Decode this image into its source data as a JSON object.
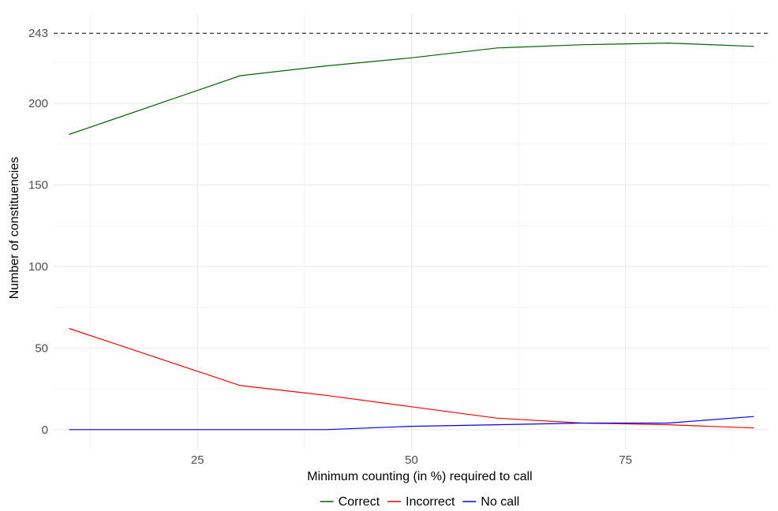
{
  "chart_data": {
    "type": "line",
    "xlabel": "Minimum counting (in %) required to call",
    "ylabel": "Number of constituencies",
    "x": [
      10,
      30,
      40,
      50,
      60,
      70,
      80,
      90
    ],
    "xlim": [
      8.2,
      91.8
    ],
    "ylim": [
      -12.2,
      255.2
    ],
    "x_ticks": [
      25,
      50,
      75
    ],
    "x_minor_ticks": [
      12.5,
      37.5,
      62.5,
      87.5
    ],
    "y_ticks": [
      0,
      50,
      100,
      150,
      200,
      243
    ],
    "y_minor_ticks": [
      25,
      75,
      125,
      175,
      225
    ],
    "reference_line": {
      "y": 243,
      "style": "dashed",
      "color": "#333333"
    },
    "grid": true,
    "legend_position": "bottom",
    "series": [
      {
        "name": "Correct",
        "color": "#006400",
        "values": [
          181,
          217,
          223,
          228,
          234,
          236,
          237,
          235
        ]
      },
      {
        "name": "Incorrect",
        "color": "#ff0000",
        "values": [
          62,
          27,
          21,
          14,
          7,
          4,
          3,
          1
        ]
      },
      {
        "name": "No call",
        "color": "#0000ff",
        "values": [
          0,
          0,
          0,
          2,
          3,
          4,
          4,
          8
        ]
      }
    ]
  }
}
